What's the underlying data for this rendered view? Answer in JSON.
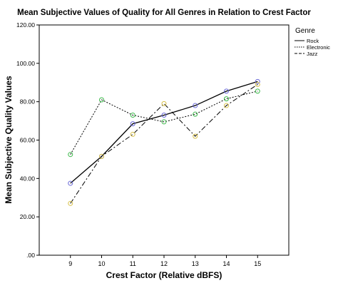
{
  "chart_data": {
    "type": "line",
    "title": "Mean Subjective Values of Quality for All Genres in Relation to Crest Factor",
    "xlabel": "Crest Factor (Relative dBFS)",
    "ylabel": "Mean Subjective Quality Values",
    "x": [
      9,
      10,
      11,
      12,
      13,
      14,
      15
    ],
    "x_tick_labels": [
      "9",
      "10",
      "11",
      "12",
      "13",
      "14",
      "15"
    ],
    "xlim": [
      8,
      16
    ],
    "ylim": [
      0,
      120
    ],
    "y_ticks": [
      0,
      20,
      40,
      60,
      80,
      100,
      120
    ],
    "y_tick_labels": [
      ".00",
      "20.00",
      "40.00",
      "60.00",
      "80.00",
      "100.00",
      "120.00"
    ],
    "grid": false,
    "legend": {
      "title": "Genre",
      "position": "right"
    },
    "series": [
      {
        "name": "Rock",
        "line_style": "solid",
        "marker_color": "#6a6ad8",
        "values": [
          37.5,
          51.5,
          68.5,
          73.0,
          78.0,
          85.5,
          90.5
        ]
      },
      {
        "name": "Electronic",
        "line_style": "dotted",
        "marker_color": "#3cb94a",
        "values": [
          52.5,
          81.0,
          73.0,
          69.5,
          73.5,
          81.5,
          85.5
        ]
      },
      {
        "name": "Jazz",
        "line_style": "dashdot",
        "marker_color": "#d8c048",
        "values": [
          27.0,
          51.5,
          63.0,
          79.0,
          62.0,
          78.0,
          89.0
        ]
      }
    ]
  }
}
